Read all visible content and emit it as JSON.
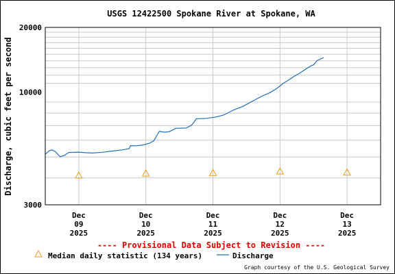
{
  "chart_data": {
    "type": "line",
    "title": "USGS 12422500 Spokane River at Spokane, WA",
    "ylabel": "Discharge, cubic feet per second",
    "xlabel": "",
    "y_scale": "log",
    "ylim": [
      3000,
      20000
    ],
    "y_ticks_labeled": [
      "3000",
      "10000",
      "20000"
    ],
    "y_minor_grid": [
      4000,
      5000,
      6000,
      7000,
      8000,
      9000,
      11000,
      12000,
      13000,
      14000,
      15000,
      16000,
      17000,
      18000,
      19000
    ],
    "x_range_days": [
      8.5,
      13.5
    ],
    "x_ticks": [
      {
        "day": 9,
        "month": "Dec",
        "date": "09",
        "year": "2025"
      },
      {
        "day": 10,
        "month": "Dec",
        "date": "10",
        "year": "2025"
      },
      {
        "day": 11,
        "month": "Dec",
        "date": "11",
        "year": "2025"
      },
      {
        "day": 12,
        "month": "Dec",
        "date": "12",
        "year": "2025"
      },
      {
        "day": 13,
        "month": "Dec",
        "date": "13",
        "year": "2025"
      }
    ],
    "series": [
      {
        "name": "Discharge",
        "color": "#1f6fb2",
        "points": [
          [
            8.5,
            5150
          ],
          [
            8.56,
            5350
          ],
          [
            8.6,
            5400
          ],
          [
            8.65,
            5300
          ],
          [
            8.72,
            5020
          ],
          [
            8.78,
            5080
          ],
          [
            8.85,
            5250
          ],
          [
            9.0,
            5270
          ],
          [
            9.1,
            5240
          ],
          [
            9.2,
            5220
          ],
          [
            9.35,
            5260
          ],
          [
            9.5,
            5330
          ],
          [
            9.65,
            5400
          ],
          [
            9.75,
            5470
          ],
          [
            9.77,
            5650
          ],
          [
            9.85,
            5640
          ],
          [
            9.95,
            5680
          ],
          [
            10.05,
            5790
          ],
          [
            10.12,
            5950
          ],
          [
            10.18,
            6420
          ],
          [
            10.2,
            6580
          ],
          [
            10.28,
            6520
          ],
          [
            10.35,
            6560
          ],
          [
            10.45,
            6800
          ],
          [
            10.6,
            6820
          ],
          [
            10.68,
            7020
          ],
          [
            10.72,
            7280
          ],
          [
            10.75,
            7530
          ],
          [
            10.9,
            7560
          ],
          [
            11.05,
            7680
          ],
          [
            11.15,
            7820
          ],
          [
            11.2,
            7950
          ],
          [
            11.3,
            8250
          ],
          [
            11.45,
            8600
          ],
          [
            11.55,
            8950
          ],
          [
            11.65,
            9300
          ],
          [
            11.75,
            9650
          ],
          [
            11.85,
            9950
          ],
          [
            11.95,
            10400
          ],
          [
            12.05,
            11000
          ],
          [
            12.15,
            11500
          ],
          [
            12.2,
            11800
          ],
          [
            12.3,
            12300
          ],
          [
            12.4,
            12900
          ],
          [
            12.47,
            13300
          ],
          [
            12.5,
            13400
          ],
          [
            12.55,
            14000
          ],
          [
            12.63,
            14400
          ],
          [
            12.65,
            14450
          ]
        ]
      },
      {
        "name": "Median daily statistic (134 years)",
        "color": "#e89c1a",
        "marker": "triangle",
        "points": [
          [
            9.0,
            4110
          ],
          [
            10.0,
            4200
          ],
          [
            11.0,
            4220
          ],
          [
            12.0,
            4290
          ],
          [
            13.0,
            4240
          ]
        ]
      }
    ],
    "legend_placement": "bottom",
    "legend": [
      {
        "label": "Median daily statistic (134 years)",
        "symbol": "triangle",
        "color": "#e89c1a"
      },
      {
        "label": "Discharge",
        "symbol": "line",
        "color": "#1f6fb2"
      }
    ],
    "annotations": {
      "provisional": "---- Provisional Data Subject to Revision ----",
      "credit": "Graph courtesy of the U.S. Geological Survey"
    },
    "grid": true
  }
}
